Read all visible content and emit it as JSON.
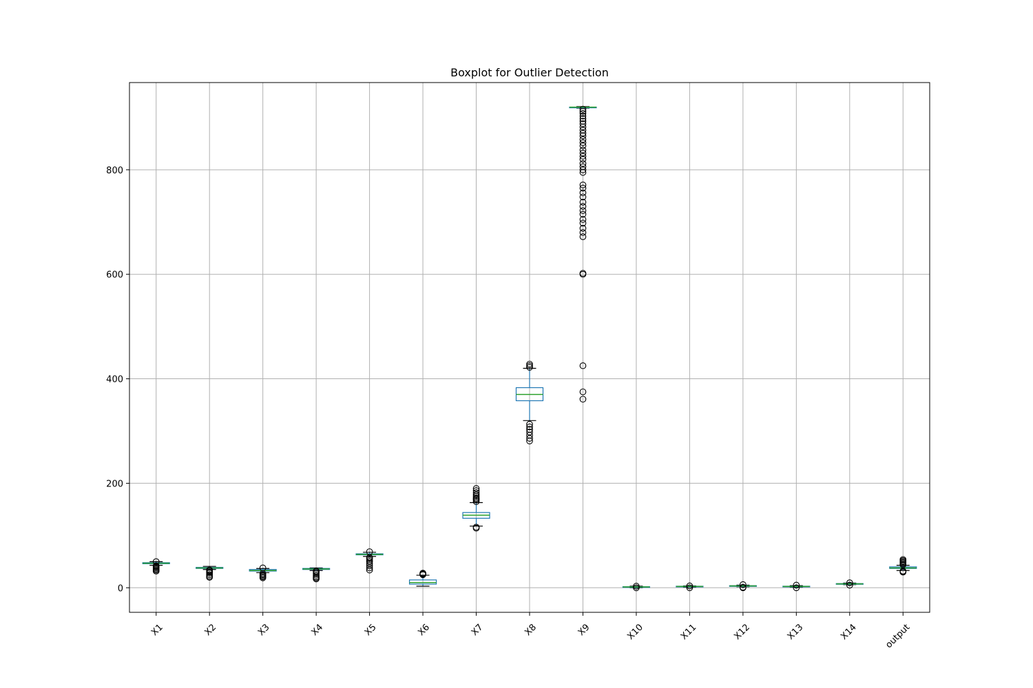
{
  "chart_data": {
    "type": "box",
    "title": "Boxplot for Outlier Detection",
    "xlabel": "",
    "ylabel": "",
    "ylim": [
      -47,
      967
    ],
    "yticks": [
      0,
      200,
      400,
      600,
      800
    ],
    "grid": true,
    "colors": {
      "box": "#1f77b4",
      "median": "#2ca02c",
      "whisker": "#1f77b4",
      "cap": "#000000",
      "flier": "#000000",
      "grid": "#b0b0b0"
    },
    "categories": [
      "X1",
      "X2",
      "X3",
      "X4",
      "X5",
      "X6",
      "X7",
      "X8",
      "X9",
      "X10",
      "X11",
      "X12",
      "X13",
      "X14",
      "output"
    ],
    "boxes": [
      {
        "name": "X1",
        "whislo": 43,
        "q1": 46,
        "median": 47,
        "q3": 48,
        "whishi": 50,
        "fliers": [
          32,
          34,
          36,
          38,
          40,
          41,
          42,
          50
        ]
      },
      {
        "name": "X2",
        "whislo": 35,
        "q1": 37,
        "median": 38,
        "q3": 39,
        "whishi": 41,
        "fliers": [
          20,
          22,
          25,
          28,
          30,
          32,
          34
        ]
      },
      {
        "name": "X3",
        "whislo": 29,
        "q1": 32,
        "median": 33,
        "q3": 35,
        "whishi": 37,
        "fliers": [
          19,
          21,
          23,
          25,
          27,
          38
        ]
      },
      {
        "name": "X4",
        "whislo": 33,
        "q1": 35,
        "median": 36,
        "q3": 37,
        "whishi": 38,
        "fliers": [
          17,
          19,
          21,
          24,
          27,
          30,
          32
        ]
      },
      {
        "name": "X5",
        "whislo": 60,
        "q1": 63,
        "median": 64,
        "q3": 65,
        "whishi": 68,
        "fliers": [
          34,
          38,
          42,
          46,
          50,
          53,
          56,
          58,
          69
        ]
      },
      {
        "name": "X6",
        "whislo": 3,
        "q1": 7,
        "median": 10,
        "q3": 15,
        "whishi": 24,
        "fliers": [
          25,
          26,
          27,
          28
        ]
      },
      {
        "name": "X7",
        "whislo": 118,
        "q1": 133,
        "median": 139,
        "q3": 144,
        "whishi": 163,
        "fliers": [
          114,
          116,
          165,
          168,
          170,
          172,
          175,
          178,
          182,
          186,
          190
        ]
      },
      {
        "name": "X8",
        "whislo": 320,
        "q1": 358,
        "median": 370,
        "q3": 383,
        "whishi": 420,
        "fliers": [
          281,
          286,
          292,
          298,
          303,
          308,
          313,
          422,
          425,
          428
        ]
      },
      {
        "name": "X9",
        "whislo": 918,
        "q1": 919,
        "median": 920,
        "q3": 920,
        "whishi": 921,
        "fliers": [
          361,
          375,
          425,
          600,
          602,
          672,
          680,
          688,
          698,
          705,
          715,
          722,
          730,
          738,
          748,
          756,
          765,
          771,
          795,
          800,
          806,
          812,
          820,
          826,
          832,
          838,
          846,
          852,
          858,
          865,
          870,
          876,
          882,
          888,
          893,
          898,
          903,
          908,
          912,
          916
        ]
      },
      {
        "name": "X10",
        "whislo": 0,
        "q1": 1,
        "median": 1.5,
        "q3": 2,
        "whishi": 3,
        "fliers": [
          0,
          3
        ]
      },
      {
        "name": "X11",
        "whislo": 1,
        "q1": 2,
        "median": 2.5,
        "q3": 3,
        "whishi": 3.5,
        "fliers": [
          0,
          3.5
        ]
      },
      {
        "name": "X12",
        "whislo": 2,
        "q1": 3,
        "median": 3.5,
        "q3": 4,
        "whishi": 5,
        "fliers": [
          0,
          1,
          6
        ]
      },
      {
        "name": "X13",
        "whislo": 1,
        "q1": 2,
        "median": 2.5,
        "q3": 3,
        "whishi": 4,
        "fliers": [
          0,
          5
        ]
      },
      {
        "name": "X14",
        "whislo": 6,
        "q1": 7,
        "median": 7.5,
        "q3": 8,
        "whishi": 9,
        "fliers": [
          5,
          9.5
        ]
      },
      {
        "name": "output",
        "whislo": 33,
        "q1": 37,
        "median": 38,
        "q3": 40,
        "whishi": 43,
        "fliers": [
          30,
          31,
          32,
          44,
          46,
          48,
          50,
          52,
          54
        ]
      }
    ]
  }
}
